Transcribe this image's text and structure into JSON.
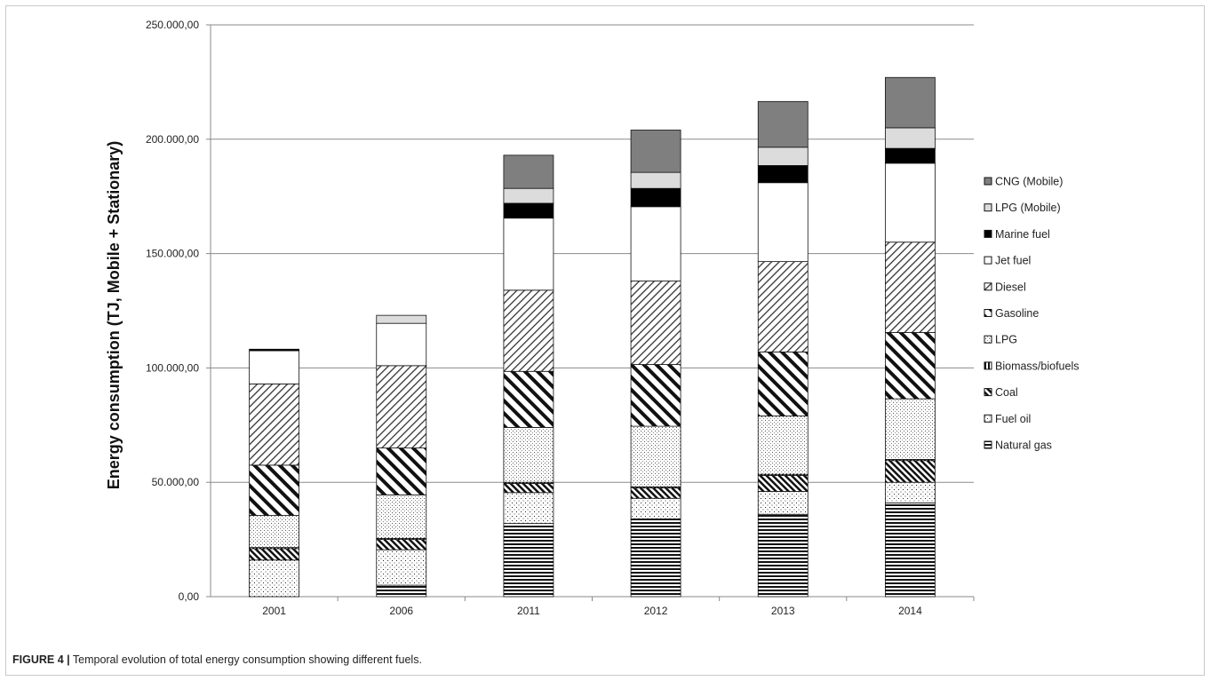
{
  "caption": {
    "label": "FIGURE 4 |",
    "text": " Temporal evolution of total energy consumption showing different fuels."
  },
  "chart_data": {
    "type": "bar",
    "stacked": true,
    "title": "",
    "xlabel": "",
    "ylabel": "Energy consumption (TJ, Mobile + Stationary)",
    "ylim": [
      0,
      250000
    ],
    "yticks": [
      0,
      50000,
      100000,
      150000,
      200000,
      250000
    ],
    "ytick_labels": [
      "0,00",
      "50.000,00",
      "100.000,00",
      "150.000,00",
      "200.000,00",
      "250.000,00"
    ],
    "grid": "horizontal",
    "legend_position": "right",
    "categories": [
      "2001",
      "2006",
      "2011",
      "2012",
      "2013",
      "2014"
    ],
    "series": [
      {
        "name": "Natural gas",
        "pattern": "hlines",
        "values": [
          0,
          5000,
          32000,
          34000,
          36000,
          41000
        ]
      },
      {
        "name": "Fuel oil",
        "pattern": "dots",
        "values": [
          16000,
          15500,
          13500,
          9000,
          10000,
          9000
        ]
      },
      {
        "name": "Coal",
        "pattern": "diag-dense",
        "values": [
          5000,
          4500,
          4000,
          4500,
          7000,
          9500
        ]
      },
      {
        "name": "Biomass/biofuels",
        "pattern": "vlines",
        "values": [
          500,
          500,
          500,
          500,
          500,
          500
        ]
      },
      {
        "name": "LPG",
        "pattern": "dots-fine",
        "values": [
          14000,
          19000,
          24000,
          26500,
          25500,
          26500
        ]
      },
      {
        "name": "Gasoline",
        "pattern": "diag-bold",
        "values": [
          22000,
          20500,
          24500,
          27000,
          28000,
          29000
        ]
      },
      {
        "name": "Diesel",
        "pattern": "diag-thin",
        "values": [
          35500,
          36000,
          35500,
          36500,
          39500,
          39500
        ]
      },
      {
        "name": "Jet fuel",
        "pattern": "white",
        "values": [
          14500,
          18500,
          31500,
          32500,
          34500,
          34500
        ]
      },
      {
        "name": "Marine fuel",
        "pattern": "black",
        "values": [
          700,
          0,
          6500,
          8000,
          7500,
          6500
        ]
      },
      {
        "name": "LPG (Mobile)",
        "pattern": "lightgray",
        "values": [
          0,
          3500,
          6500,
          7000,
          8000,
          9000
        ]
      },
      {
        "name": "CNG (Mobile)",
        "pattern": "gray",
        "values": [
          0,
          0,
          14500,
          18500,
          20000,
          22000
        ]
      }
    ],
    "legend_order": [
      "CNG (Mobile)",
      "LPG (Mobile)",
      "Marine fuel",
      "Jet fuel",
      "Diesel",
      "Gasoline",
      "LPG",
      "Biomass/biofuels",
      "Coal",
      "Fuel oil",
      "Natural gas"
    ]
  }
}
